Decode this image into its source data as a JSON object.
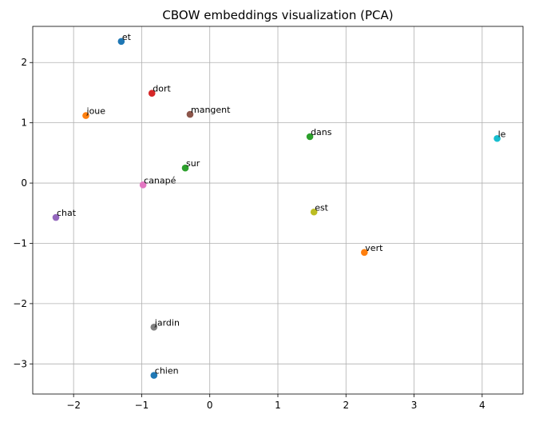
{
  "chart_data": {
    "type": "scatter",
    "title": "CBOW embeddings visualization (PCA)",
    "xlabel": "",
    "ylabel": "",
    "xlim": [
      -2.6,
      4.6
    ],
    "ylim": [
      -3.5,
      2.6
    ],
    "x_ticks": [
      -2,
      -1,
      0,
      1,
      2,
      3,
      4
    ],
    "y_ticks": [
      -3,
      -2,
      -1,
      0,
      1,
      2
    ],
    "x_tick_labels": [
      "−2",
      "−1",
      "0",
      "1",
      "2",
      "3",
      "4"
    ],
    "y_tick_labels": [
      "−3",
      "−2",
      "−1",
      "0",
      "1",
      "2"
    ],
    "grid": true,
    "points": [
      {
        "label": "et",
        "x": -1.3,
        "y": 2.35,
        "color": "#1f77b4"
      },
      {
        "label": "dort",
        "x": -0.85,
        "y": 1.49,
        "color": "#d62728"
      },
      {
        "label": "joue",
        "x": -1.82,
        "y": 1.12,
        "color": "#ff7f0e"
      },
      {
        "label": "mangent",
        "x": -0.29,
        "y": 1.14,
        "color": "#8c564b"
      },
      {
        "label": "dans",
        "x": 1.47,
        "y": 0.77,
        "color": "#2ca02c"
      },
      {
        "label": "le",
        "x": 4.22,
        "y": 0.74,
        "color": "#17becf"
      },
      {
        "label": "sur",
        "x": -0.36,
        "y": 0.25,
        "color": "#2ca02c"
      },
      {
        "label": "canapé",
        "x": -0.98,
        "y": -0.03,
        "color": "#e377c2"
      },
      {
        "label": "chat",
        "x": -2.26,
        "y": -0.57,
        "color": "#9467bd"
      },
      {
        "label": "est",
        "x": 1.53,
        "y": -0.48,
        "color": "#bcbd22"
      },
      {
        "label": "vert",
        "x": 2.27,
        "y": -1.15,
        "color": "#ff7f0e"
      },
      {
        "label": "jardin",
        "x": -0.82,
        "y": -2.39,
        "color": "#7f7f7f"
      },
      {
        "label": "chien",
        "x": -0.82,
        "y": -3.19,
        "color": "#1f77b4"
      }
    ]
  }
}
